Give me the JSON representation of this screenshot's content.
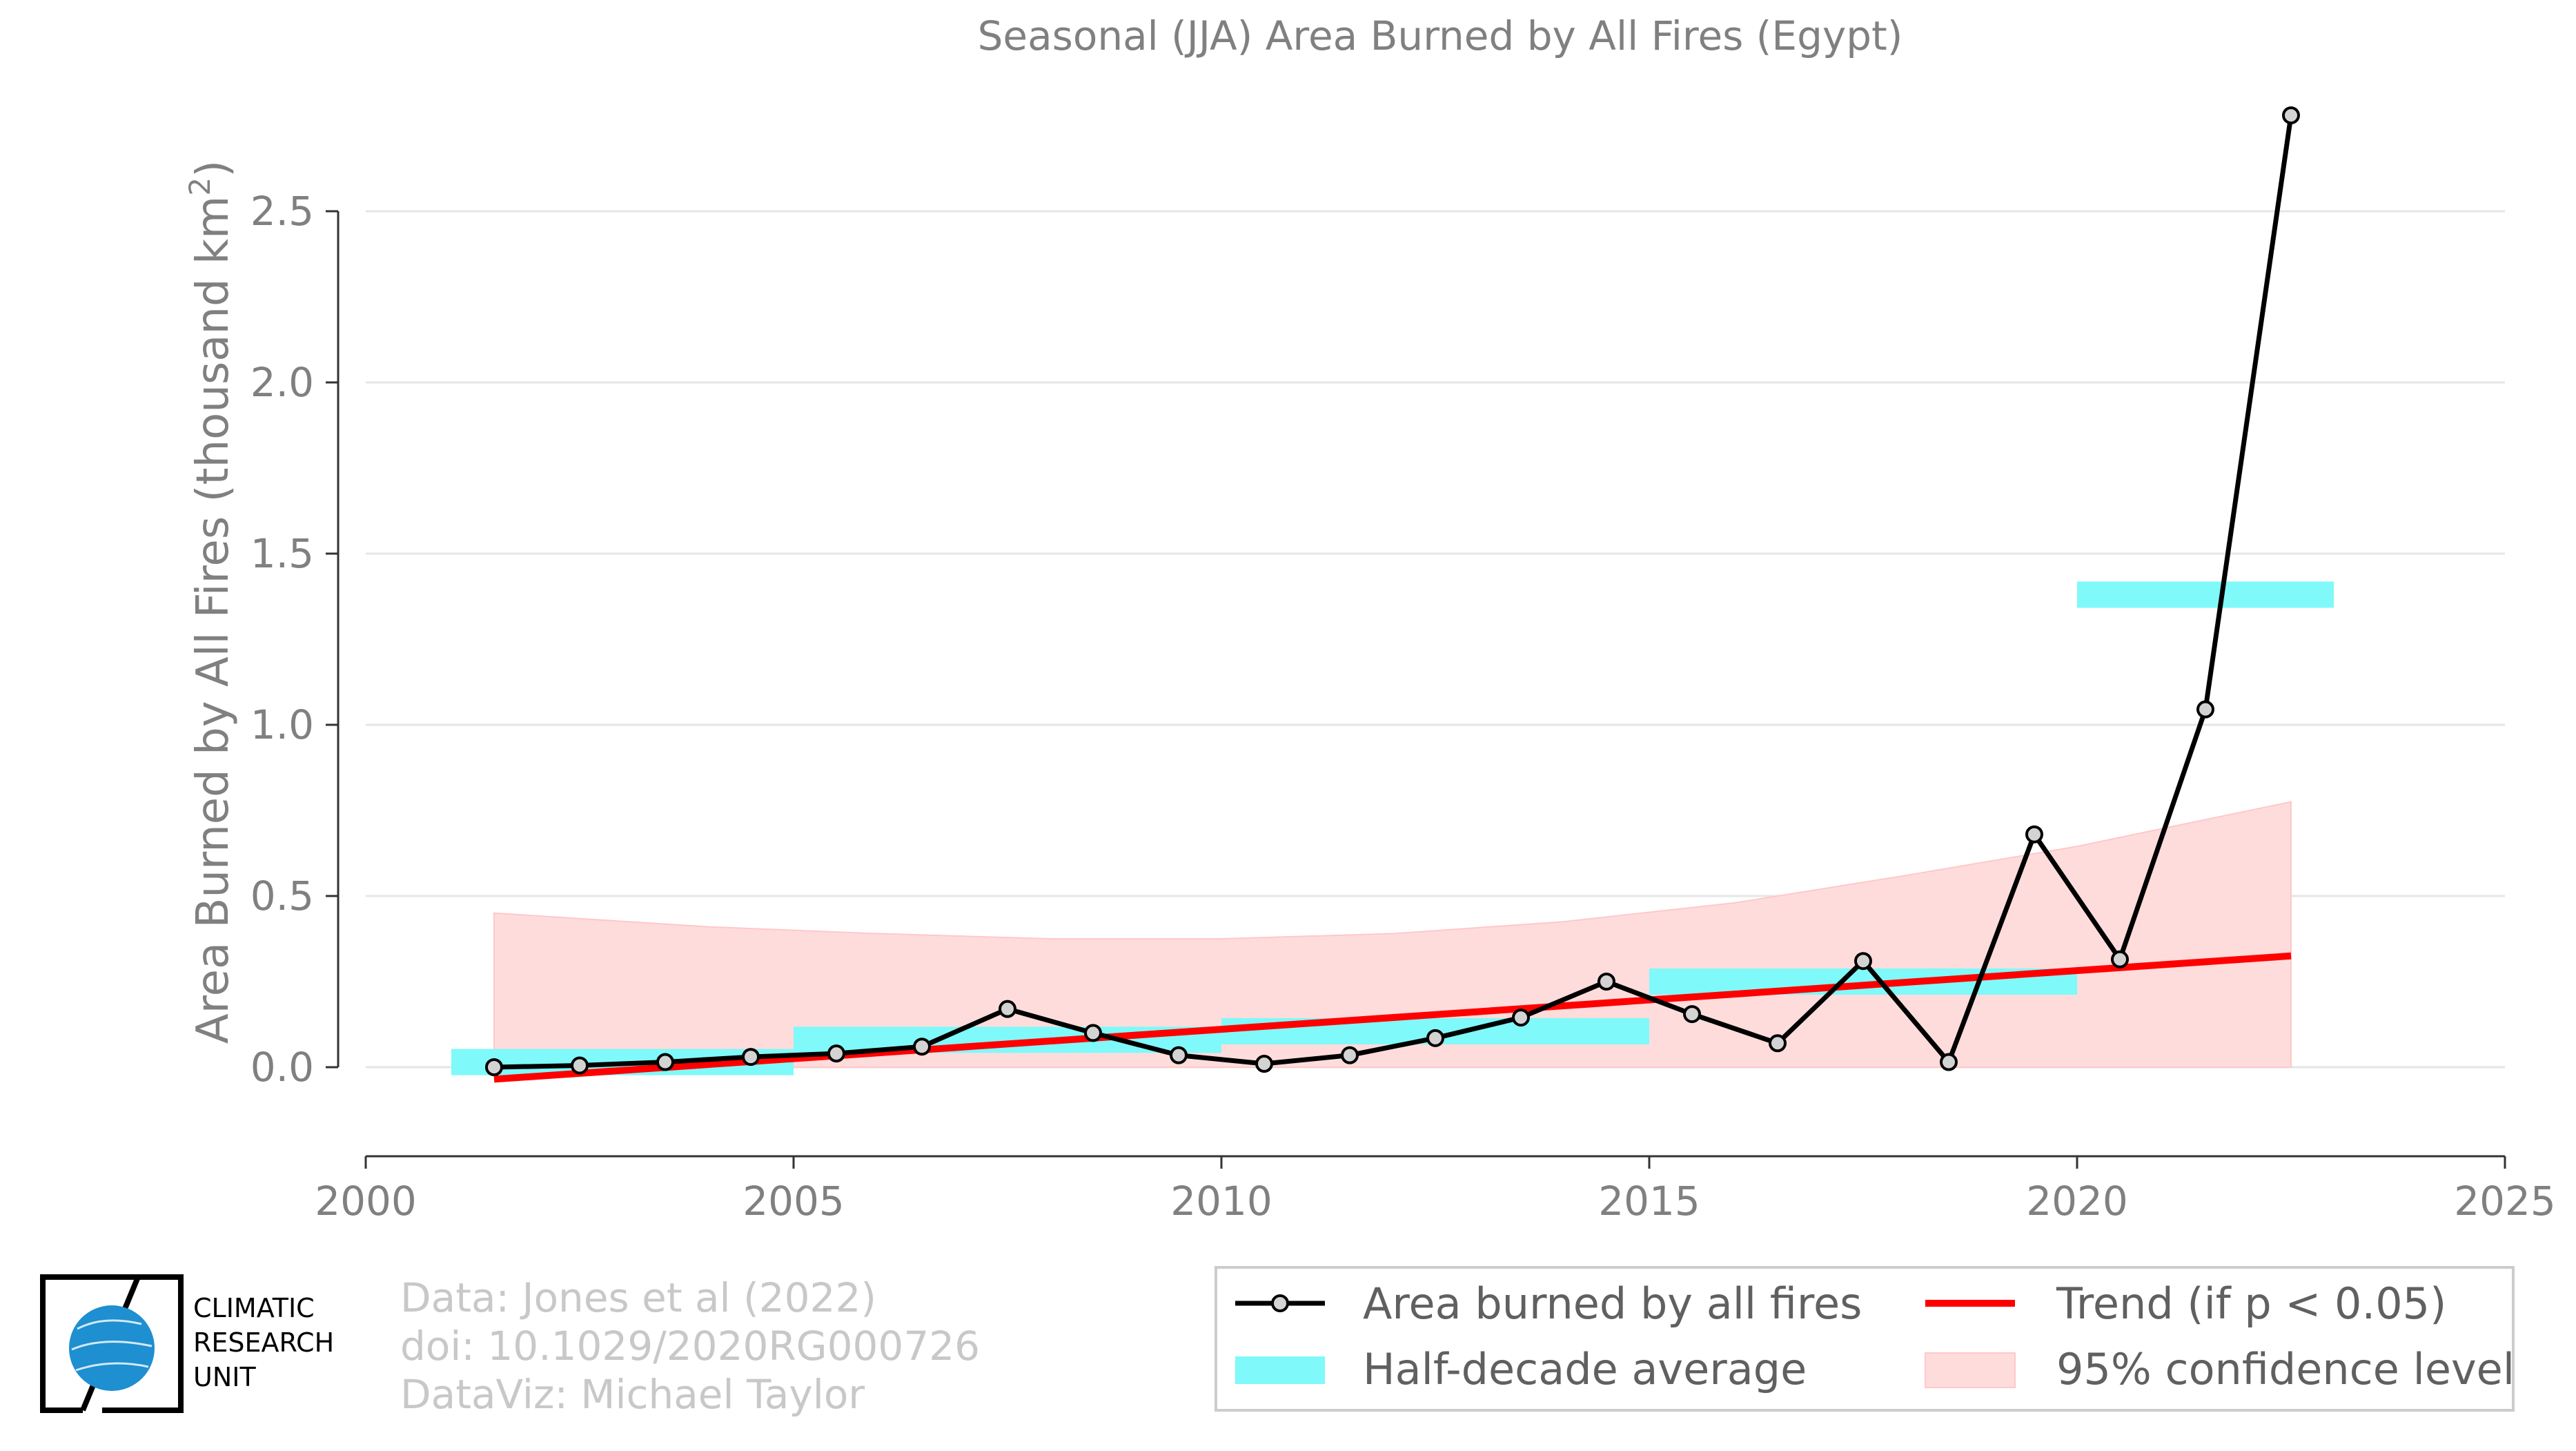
{
  "chart_data": {
    "type": "line",
    "title": "Seasonal (JJA) Area Burned by All Fires (Egypt)",
    "ylabel": "Area Burned by All Fires (thousand km",
    "ylabel_sup": "2",
    "ylabel_close": ")",
    "xlabel": "",
    "xlim": [
      2000,
      2025
    ],
    "ylim": [
      -0.26,
      2.9
    ],
    "x_ticks": [
      2000,
      2005,
      2010,
      2015,
      2020,
      2025
    ],
    "y_ticks": [
      0.0,
      0.5,
      1.0,
      1.5,
      2.0,
      2.5
    ],
    "x_tick_labels": [
      "2000",
      "2005",
      "2010",
      "2015",
      "2020",
      "2025"
    ],
    "y_tick_labels": [
      "0.0",
      "0.5",
      "1.0",
      "1.5",
      "2.0",
      "2.5"
    ],
    "grid": "horizontal",
    "series": [
      {
        "name": "Area burned by all fires",
        "color": "#000000",
        "marker_fill": "#d3d3d3",
        "x": [
          2001.5,
          2002.5,
          2003.5,
          2004.5,
          2005.5,
          2006.5,
          2007.5,
          2008.5,
          2009.5,
          2010.5,
          2011.5,
          2012.5,
          2013.5,
          2014.5,
          2015.5,
          2016.5,
          2017.5,
          2018.5,
          2019.5,
          2020.5,
          2021.5,
          2022.5
        ],
        "values": [
          0.0,
          0.005,
          0.015,
          0.03,
          0.04,
          0.06,
          0.17,
          0.1,
          0.035,
          0.01,
          0.035,
          0.085,
          0.145,
          0.25,
          0.155,
          0.07,
          0.31,
          0.015,
          0.68,
          0.315,
          1.045,
          2.78
        ]
      }
    ],
    "half_decade_average": {
      "name": "Half-decade average",
      "color": "#7ff9f9",
      "segments": [
        {
          "x0": 2001,
          "x1": 2005,
          "y": 0.015
        },
        {
          "x0": 2005,
          "x1": 2010,
          "y": 0.08
        },
        {
          "x0": 2010,
          "x1": 2015,
          "y": 0.105
        },
        {
          "x0": 2015,
          "x1": 2020,
          "y": 0.25
        },
        {
          "x0": 2020,
          "x1": 2023,
          "y": 1.38
        }
      ]
    },
    "trend": {
      "name": "Trend (if p < 0.05)",
      "color": "#ff0000",
      "x": [
        2001.5,
        2022.5
      ],
      "y": [
        -0.035,
        0.325
      ]
    },
    "confidence": {
      "name": "95% confidence level",
      "color": "#ffdcdc",
      "x": [
        2001.5,
        2004,
        2006,
        2008,
        2010,
        2012,
        2014,
        2016,
        2018,
        2020,
        2022.5
      ],
      "upper": [
        0.45,
        0.41,
        0.39,
        0.375,
        0.375,
        0.39,
        0.425,
        0.48,
        0.56,
        0.645,
        0.775
      ],
      "lower": [
        0.0,
        0.0,
        0.0,
        0.0,
        0.0,
        0.0,
        0.0,
        0.0,
        0.0,
        0.0,
        0.0
      ]
    },
    "legend_position": "bottom-right"
  },
  "credits": {
    "line1": "Data: Jones et al (2022)",
    "line2": "doi: 10.1029/2020RG000726",
    "line3": "DataViz: Michael Taylor"
  },
  "logo": {
    "line1": "CLIMATIC",
    "line2": "RESEARCH",
    "line3": "UNIT",
    "globe_color": "#1e8fd0"
  },
  "legend": {
    "item1": "Area burned by all fires",
    "item2": "Trend (if p < 0.05)",
    "item3": "Half-decade average",
    "item4": "95% confidence level"
  }
}
